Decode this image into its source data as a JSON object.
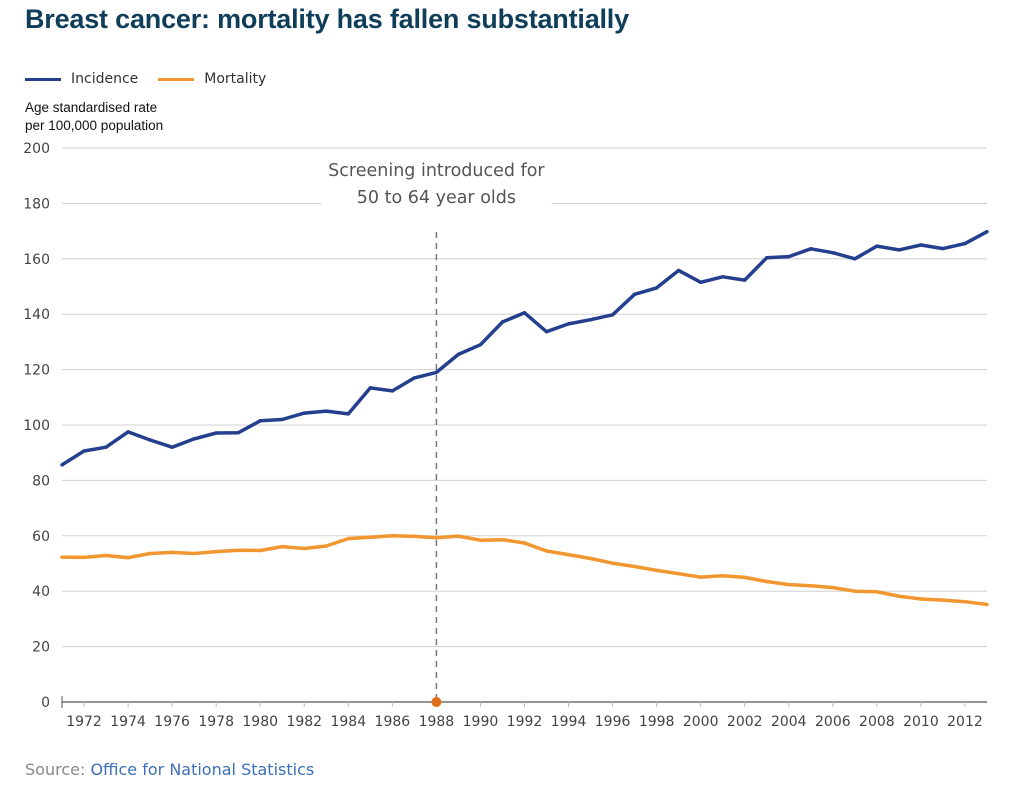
{
  "title": "Breast cancer: mortality has fallen substantially",
  "source": {
    "prefix": "Source:",
    "link_text": "Office for National Statistics"
  },
  "chart_data": {
    "type": "line",
    "title": "Breast cancer: mortality has fallen substantially",
    "ylabel": [
      "Age standardised rate",
      "per 100,000 population"
    ],
    "xlabel": "",
    "ylim": [
      0,
      200
    ],
    "yticks": [
      0,
      20,
      40,
      60,
      80,
      100,
      120,
      140,
      160,
      180,
      200
    ],
    "xlim": [
      1971,
      2013
    ],
    "xticks": [
      1972,
      1974,
      1976,
      1978,
      1980,
      1982,
      1984,
      1986,
      1988,
      1990,
      1992,
      1994,
      1996,
      1998,
      2000,
      2002,
      2004,
      2006,
      2008,
      2010,
      2012
    ],
    "grid": true,
    "legend": "top-left",
    "x": [
      1971,
      1972,
      1973,
      1974,
      1975,
      1976,
      1977,
      1978,
      1979,
      1980,
      1981,
      1982,
      1983,
      1984,
      1985,
      1986,
      1987,
      1988,
      1989,
      1990,
      1991,
      1992,
      1993,
      1994,
      1995,
      1996,
      1997,
      1998,
      1999,
      2000,
      2001,
      2002,
      2003,
      2004,
      2005,
      2006,
      2007,
      2008,
      2009,
      2010,
      2011,
      2012,
      2013
    ],
    "series": [
      {
        "name": "Incidence",
        "color": "#253f8f",
        "values": [
          85.6,
          90.6,
          92.0,
          97.5,
          94.6,
          92.0,
          95.0,
          97.1,
          97.2,
          101.5,
          102.0,
          104.3,
          105.0,
          104.0,
          113.4,
          112.3,
          117.0,
          119.0,
          125.5,
          129.0,
          137.2,
          140.5,
          133.7,
          136.5,
          138.0,
          139.8,
          147.2,
          149.5,
          155.8,
          151.5,
          153.5,
          152.3,
          160.4,
          160.8,
          163.6,
          162.2,
          160.0,
          164.6,
          163.2,
          165.0,
          163.7,
          165.5,
          169.8
        ]
      },
      {
        "name": "Mortality",
        "color": "#f2962f",
        "values": [
          52.3,
          52.2,
          52.9,
          52.1,
          53.6,
          54.0,
          53.6,
          54.3,
          54.8,
          54.7,
          56.1,
          55.4,
          56.3,
          59.0,
          59.5,
          60.0,
          59.8,
          59.3,
          59.9,
          58.4,
          58.6,
          57.4,
          54.5,
          53.2,
          51.8,
          50.1,
          48.9,
          47.5,
          46.3,
          45.1,
          45.6,
          45.0,
          43.5,
          42.4,
          42.0,
          41.3,
          40.0,
          39.8,
          38.2,
          37.2,
          36.8,
          36.2,
          35.2
        ]
      }
    ],
    "annotations": [
      {
        "x": 1988,
        "lines": [
          "Screening introduced for",
          "50 to 64 year olds"
        ],
        "marker_color": "#e0701a"
      }
    ]
  }
}
